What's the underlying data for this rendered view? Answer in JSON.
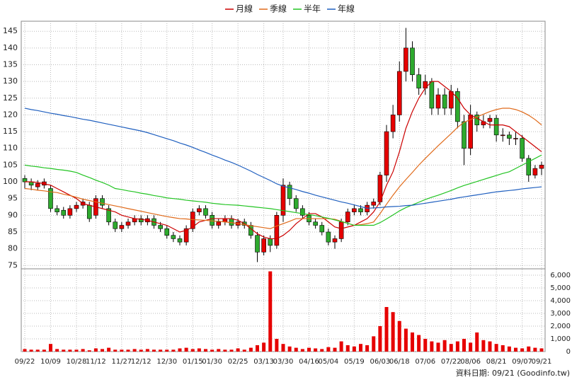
{
  "chart_data": {
    "type": "candlestick",
    "categories": [
      "09/22",
      null,
      null,
      null,
      "10/09",
      null,
      null,
      null,
      "10/28",
      null,
      null,
      "11/12",
      null,
      null,
      null,
      "11/27",
      null,
      null,
      "12/12",
      null,
      null,
      null,
      "12/30",
      null,
      null,
      null,
      "01/15",
      null,
      null,
      "01/30",
      null,
      null,
      null,
      "02/25",
      null,
      null,
      null,
      "03/13",
      null,
      null,
      "03/30",
      null,
      null,
      null,
      "04/16",
      null,
      null,
      "05/04",
      null,
      null,
      null,
      "05/19",
      null,
      null,
      null,
      "06/03",
      null,
      null,
      "06/18",
      null,
      null,
      null,
      "07/06",
      null,
      null,
      null,
      "07/22",
      null,
      null,
      "08/06",
      null,
      null,
      null,
      "08/21",
      null,
      null,
      null,
      "09/07",
      null,
      null,
      "09/21"
    ],
    "open": [
      101,
      100,
      98.5,
      99,
      98,
      92,
      91.5,
      90,
      92,
      93,
      93,
      90,
      95,
      92,
      88,
      86,
      87,
      88,
      89,
      88,
      89,
      87,
      86,
      84,
      83,
      82,
      86,
      91,
      92,
      90,
      87,
      88,
      89,
      87,
      88,
      87,
      84,
      79,
      83,
      81,
      90,
      99,
      95,
      92,
      90,
      88,
      87,
      85,
      82,
      83,
      88,
      91,
      92,
      91,
      93,
      94,
      102,
      115,
      120,
      133,
      140,
      132,
      128,
      130,
      122,
      126,
      122,
      127,
      118,
      110,
      120,
      117,
      118,
      119,
      114,
      114,
      113,
      113,
      107,
      102,
      104
    ],
    "high": [
      102,
      101,
      100.5,
      101,
      99,
      93,
      92.5,
      93,
      94,
      95,
      94,
      96,
      96,
      93,
      89,
      88,
      89,
      90,
      90,
      90,
      90,
      88,
      87,
      85,
      84,
      87,
      92,
      93,
      93,
      91,
      89,
      90,
      90,
      89,
      89,
      88,
      85,
      84,
      84,
      91,
      101,
      100,
      96,
      93,
      91,
      89,
      88,
      86,
      84,
      89,
      92,
      93,
      93,
      94,
      95,
      103,
      117,
      123,
      136,
      146,
      142,
      134,
      132,
      131,
      128,
      128,
      129,
      128,
      120,
      123,
      121,
      120,
      120,
      120,
      116,
      115,
      115,
      114,
      108,
      105,
      106
    ],
    "low": [
      98,
      97.5,
      97.5,
      98,
      91,
      90,
      89,
      89,
      91,
      92,
      88,
      89,
      92,
      87,
      85,
      85,
      86,
      87,
      87,
      87,
      86,
      85,
      83,
      82,
      81,
      81,
      85,
      90,
      89,
      86,
      86,
      87,
      86,
      86,
      86,
      83,
      76,
      78,
      79,
      80,
      88,
      93,
      91,
      89,
      87,
      86,
      84,
      81,
      80,
      82,
      87,
      90,
      90,
      90,
      92,
      93,
      100,
      113,
      118,
      130,
      130,
      126,
      126,
      120,
      120,
      120,
      120,
      116,
      105,
      108,
      115,
      116,
      116,
      112,
      112,
      111,
      111,
      106,
      100,
      101,
      102
    ],
    "close": [
      100,
      99,
      99.5,
      100,
      92,
      91,
      90,
      92,
      93,
      94,
      89,
      95,
      93,
      88,
      86,
      87,
      88,
      89,
      88,
      89,
      87,
      86,
      84,
      83,
      82,
      86,
      91,
      92,
      90,
      87,
      88,
      89,
      87,
      88,
      87,
      84,
      79,
      83,
      81,
      90,
      99,
      95,
      92,
      90,
      88,
      87,
      85,
      82,
      83,
      88,
      91,
      92,
      91,
      93,
      94,
      102,
      115,
      120,
      133,
      140,
      132,
      128,
      130,
      122,
      126,
      122,
      127,
      118,
      110,
      120,
      117,
      118,
      119,
      114,
      114,
      113,
      113,
      107,
      102,
      104,
      105
    ],
    "series": [
      {
        "name": "月線",
        "color": "#cc0000",
        "values": [
          100,
          100,
          99.8,
          99.4,
          99,
          98,
          97,
          96,
          95,
          93.5,
          93,
          92.5,
          92,
          91.5,
          91,
          90,
          89.5,
          89,
          88.8,
          88.5,
          88,
          87.5,
          87,
          86,
          85,
          85.5,
          86.5,
          88,
          88.5,
          89,
          89,
          89,
          89,
          88.5,
          87.5,
          86,
          84.5,
          83.5,
          83,
          83,
          84,
          85.5,
          87.5,
          89,
          90.5,
          90.5,
          89.5,
          88,
          86.5,
          86,
          86.5,
          87,
          88,
          89,
          91,
          94,
          99,
          103,
          109,
          116,
          121,
          125,
          128,
          130,
          130,
          128.5,
          127,
          125,
          122,
          120,
          119,
          118,
          117,
          117,
          117,
          116.5,
          115,
          113.5,
          112,
          110.5,
          109
        ]
      },
      {
        "name": "季線",
        "color": "#e06a1a",
        "values": [
          98.0,
          97.8,
          97.5,
          97.3,
          97.0,
          96.8,
          96.3,
          95.9,
          95.4,
          94.8,
          94.4,
          94.0,
          93.6,
          93.2,
          92.8,
          92.4,
          92.0,
          91.6,
          91.2,
          90.8,
          90.4,
          90.0,
          89.6,
          89.3,
          89.0,
          88.9,
          88.7,
          88.6,
          88.5,
          88.3,
          88.2,
          88.0,
          87.8,
          87.5,
          87.2,
          86.9,
          86.6,
          86.3,
          86.0,
          86.8,
          87.5,
          88.2,
          89.0,
          89.0,
          89.0,
          89.0,
          89.0,
          89.0,
          88.8,
          88.2,
          87.6,
          87.0,
          87.2,
          87.5,
          88.0,
          90.5,
          93.3,
          96.0,
          98.5,
          100.7,
          102.8,
          105.0,
          107.0,
          108.9,
          110.8,
          112.6,
          114.4,
          116.3,
          117.8,
          118.6,
          119.4,
          120.2,
          121.0,
          121.6,
          122.0,
          122.0,
          121.6,
          120.9,
          119.9,
          118.6,
          117.0
        ]
      },
      {
        "name": "半年",
        "color": "#22c422",
        "values": [
          105,
          104.7,
          104.5,
          104.2,
          104.0,
          103.7,
          103.5,
          103.2,
          102.8,
          102.0,
          101.3,
          100.5,
          99.8,
          99.0,
          98.0,
          97.7,
          97.3,
          97.0,
          96.6,
          96.3,
          95.9,
          95.6,
          95.2,
          95.0,
          94.8,
          94.5,
          94.3,
          94.1,
          93.9,
          93.6,
          93.4,
          93.2,
          93.1,
          93.0,
          92.8,
          92.6,
          92.4,
          92.2,
          92.0,
          91.7,
          91.4,
          91.1,
          90.8,
          90.5,
          90.2,
          89.9,
          89.5,
          89.1,
          88.6,
          88.1,
          87.6,
          87.0,
          87.0,
          87.0,
          87.0,
          87.8,
          88.9,
          90.1,
          91.3,
          92.3,
          93.1,
          93.9,
          94.7,
          95.4,
          96.0,
          96.7,
          97.4,
          98.2,
          98.9,
          99.5,
          100.1,
          100.7,
          101.3,
          101.9,
          102.5,
          103.0,
          104.0,
          105.0,
          106.0,
          107.0,
          108.0
        ]
      },
      {
        "name": "年線",
        "color": "#1f5fbf",
        "values": [
          122.0,
          121.6,
          121.3,
          120.9,
          120.5,
          120.2,
          119.8,
          119.5,
          119.1,
          118.7,
          118.4,
          118.0,
          117.6,
          117.2,
          116.8,
          116.4,
          116.0,
          115.6,
          115.2,
          114.7,
          114.1,
          113.5,
          112.9,
          112.3,
          111.6,
          111.0,
          110.3,
          109.5,
          108.8,
          108.0,
          107.3,
          106.5,
          105.8,
          105.0,
          104.1,
          103.2,
          102.2,
          101.3,
          100.4,
          99.4,
          98.7,
          98.2,
          97.7,
          97.1,
          96.6,
          96.0,
          95.5,
          95.0,
          94.5,
          94.0,
          93.6,
          93.1,
          92.6,
          92.1,
          92.2,
          92.3,
          92.5,
          92.6,
          92.7,
          92.9,
          93.0,
          93.3,
          93.6,
          93.9,
          94.2,
          94.5,
          94.8,
          95.2,
          95.5,
          95.8,
          96.1,
          96.4,
          96.7,
          97.0,
          97.2,
          97.4,
          97.6,
          97.9,
          98.1,
          98.3,
          98.5
        ]
      }
    ],
    "up_color": "#e60000",
    "down_color": "#2eaa2e",
    "ylim": [
      74,
      148
    ],
    "yticks": [
      75,
      80,
      85,
      90,
      95,
      100,
      105,
      110,
      115,
      120,
      125,
      130,
      135,
      140,
      145
    ],
    "grid": true,
    "volume": {
      "type": "bar",
      "color": "#e60000",
      "values": [
        200,
        150,
        150,
        150,
        600,
        200,
        150,
        150,
        150,
        200,
        100,
        250,
        200,
        300,
        150,
        150,
        150,
        200,
        150,
        200,
        150,
        150,
        150,
        150,
        250,
        300,
        200,
        250,
        200,
        150,
        200,
        150,
        150,
        250,
        150,
        300,
        500,
        700,
        6300,
        1000,
        600,
        400,
        300,
        200,
        300,
        250,
        200,
        350,
        300,
        800,
        500,
        400,
        600,
        500,
        1200,
        2000,
        3500,
        3100,
        2400,
        1800,
        1500,
        1300,
        1000,
        800,
        700,
        900,
        600,
        800,
        1000,
        700,
        1500,
        900,
        800,
        600,
        500,
        400,
        300,
        250,
        400,
        300,
        250
      ],
      "ylim": [
        0,
        6500
      ],
      "yticks": [
        0,
        {
          "value": 1000,
          "label": "1,000"
        },
        {
          "value": 2000,
          "label": "2,000"
        },
        {
          "value": 3000,
          "label": "3,000"
        },
        {
          "value": 4000,
          "label": "4,000"
        },
        {
          "value": 5000,
          "label": "5,000"
        },
        {
          "value": 6000,
          "label": "6,000"
        }
      ]
    },
    "source": "資料日期: 09/21 (Goodinfo.tw)"
  }
}
